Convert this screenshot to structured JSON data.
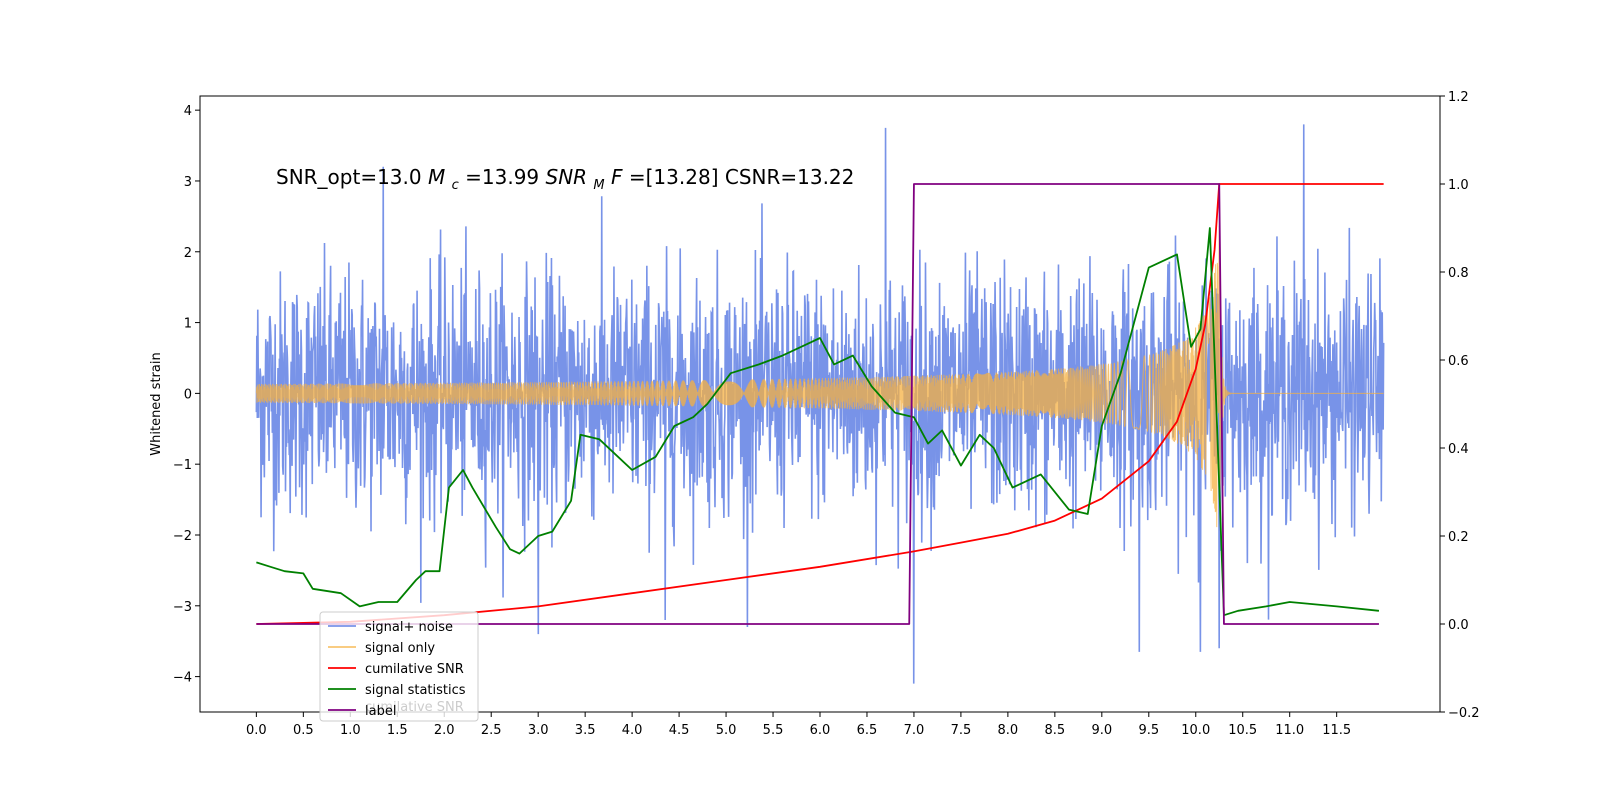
{
  "chart_data": {
    "type": "line",
    "title": "",
    "annotation": {
      "part1": "SNR_opt=13.0   ",
      "part2_main": "M",
      "part2_sub": "c",
      "part3": "=13.99  ",
      "part4_main": "SNR",
      "part4_sub": "M",
      "part5_main": "F",
      "part6": "=[13.28] CSNR=13.22"
    },
    "xlabel": "",
    "ylabel": "Whitened strain",
    "xlim": [
      -0.6,
      12.6
    ],
    "ylim_left": [
      -4.5,
      4.2
    ],
    "ylim_right": [
      -0.2,
      1.2
    ],
    "x_ticks": [
      "0.0",
      "0.5",
      "1.0",
      "1.5",
      "2.0",
      "2.5",
      "3.0",
      "3.5",
      "4.0",
      "4.5",
      "5.0",
      "5.5",
      "6.0",
      "6.5",
      "7.0",
      "7.5",
      "8.0",
      "8.5",
      "9.0",
      "9.5",
      "10.0",
      "10.5",
      "11.0",
      "11.5"
    ],
    "x_tick_values": [
      0,
      0.5,
      1,
      1.5,
      2,
      2.5,
      3,
      3.5,
      4,
      4.5,
      5,
      5.5,
      6,
      6.5,
      7,
      7.5,
      8,
      8.5,
      9,
      9.5,
      10,
      10.5,
      11,
      11.5
    ],
    "y_ticks_left": [
      "4",
      "3",
      "2",
      "1",
      "0",
      "−1",
      "−2",
      "−3",
      "−4"
    ],
    "y_tick_values_left": [
      4,
      3,
      2,
      1,
      0,
      -1,
      -2,
      -3,
      -4
    ],
    "y_ticks_right": [
      "1.2",
      "1.0",
      "0.8",
      "0.6",
      "0.4",
      "0.2",
      "0.0",
      "−0.2"
    ],
    "y_tick_values_right": [
      1.2,
      1.0,
      0.8,
      0.6,
      0.4,
      0.2,
      0.0,
      -0.2
    ],
    "grid": false,
    "legend_position": "lower-left",
    "series": [
      {
        "name": "signal+ noise",
        "axis": "left",
        "color": "#7893e8",
        "kind": "noise",
        "x_range": [
          0,
          12.0
        ],
        "std": 0.85,
        "sample_count": 2400,
        "spikes": [
          [
            1.35,
            3.2
          ],
          [
            6.7,
            3.75
          ],
          [
            11.15,
            3.8
          ],
          [
            7.0,
            -4.1
          ],
          [
            9.4,
            -3.65
          ],
          [
            10.05,
            -3.65
          ],
          [
            10.25,
            -3.6
          ],
          [
            3.0,
            -3.4
          ],
          [
            4.35,
            -3.2
          ]
        ]
      },
      {
        "name": "signal only",
        "axis": "left",
        "color": "#f5b041",
        "kind": "chirp",
        "x_range": [
          0,
          12.0
        ],
        "merger_x": 10.25,
        "peak_amplitude": 2.5
      },
      {
        "name": "cumilative SNR",
        "axis": "right",
        "color": "#ff0000",
        "x": [
          0,
          1,
          2,
          3,
          4,
          5,
          6,
          7,
          7.5,
          8,
          8.5,
          9,
          9.5,
          9.8,
          10.0,
          10.1,
          10.2,
          10.25,
          10.3,
          12.0
        ],
        "y": [
          0.0,
          0.005,
          0.02,
          0.04,
          0.07,
          0.1,
          0.13,
          0.165,
          0.185,
          0.205,
          0.235,
          0.285,
          0.37,
          0.46,
          0.58,
          0.68,
          0.85,
          1.0,
          1.0,
          1.0
        ]
      },
      {
        "name": "signal statistics",
        "axis": "right",
        "color": "#008000",
        "x": [
          0,
          0.15,
          0.3,
          0.5,
          0.6,
          0.9,
          1.1,
          1.3,
          1.5,
          1.7,
          1.8,
          1.95,
          2.05,
          2.2,
          2.3,
          2.55,
          2.7,
          2.8,
          3.0,
          3.15,
          3.35,
          3.45,
          3.65,
          3.85,
          4.0,
          4.25,
          4.45,
          4.65,
          4.8,
          5.05,
          5.35,
          5.6,
          5.8,
          6.0,
          6.15,
          6.35,
          6.55,
          6.8,
          7.0,
          7.15,
          7.3,
          7.5,
          7.7,
          7.85,
          8.05,
          8.35,
          8.65,
          8.85,
          9.0,
          9.2,
          9.5,
          9.8,
          9.95,
          10.05,
          10.15,
          10.3,
          10.45,
          10.75,
          11.0,
          11.5,
          11.95
        ],
        "y": [
          0.14,
          0.13,
          0.12,
          0.115,
          0.08,
          0.07,
          0.04,
          0.05,
          0.05,
          0.1,
          0.12,
          0.12,
          0.31,
          0.35,
          0.31,
          0.22,
          0.17,
          0.16,
          0.2,
          0.21,
          0.28,
          0.43,
          0.42,
          0.38,
          0.35,
          0.38,
          0.45,
          0.47,
          0.5,
          0.57,
          0.59,
          0.61,
          0.63,
          0.65,
          0.59,
          0.61,
          0.54,
          0.48,
          0.47,
          0.41,
          0.44,
          0.36,
          0.43,
          0.4,
          0.31,
          0.34,
          0.26,
          0.25,
          0.45,
          0.57,
          0.81,
          0.84,
          0.63,
          0.67,
          0.9,
          0.02,
          0.03,
          0.04,
          0.05,
          0.04,
          0.03
        ]
      },
      {
        "name": "label",
        "axis": "right",
        "color": "#800080",
        "x": [
          0,
          6.95,
          7.0,
          10.25,
          10.3,
          11.95
        ],
        "y": [
          0.0,
          0.0,
          1.0,
          1.0,
          0.0,
          0.0
        ]
      }
    ],
    "legend_ghost_label": "cumilative SNR"
  }
}
